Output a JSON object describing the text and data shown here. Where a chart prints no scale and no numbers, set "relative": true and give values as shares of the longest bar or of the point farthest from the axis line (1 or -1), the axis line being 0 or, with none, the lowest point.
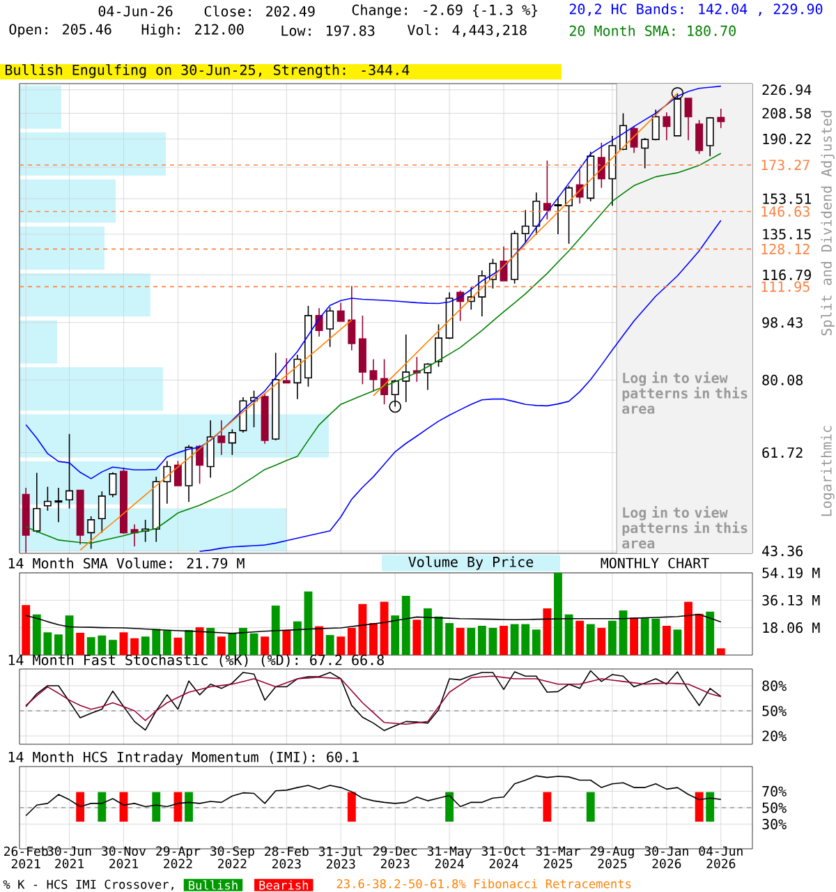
{
  "chart_data": [
    {
      "type": "candlestick",
      "title": "04-Jun-26",
      "ylabel": "Split and Dividend Adjusted",
      "annotations": [
        "Close: 202.49",
        "Change: -2.69 {-1.3 %}",
        "Open: 205.46",
        "High: 212.00",
        "Low: 197.83",
        "Vol: 4,443,218",
        "Bullish Engulfing on 30-Jun-25, Strength: -344.4",
        "Logarithmic",
        "23.6-38.2-50-61.8% Fibonacci Retracements",
        "Log in to view patterns in this area"
      ],
      "legend": "top right",
      "tick_labels": "y",
      "log": "y",
      "grid": true,
      "categories": [
        null,
        null,
        null,
        null,
        null,
        null,
        null,
        null,
        null,
        null,
        null,
        null,
        null,
        null,
        null,
        null,
        null,
        null,
        null,
        null,
        null,
        null,
        null,
        null,
        null,
        null,
        null,
        null,
        null,
        null,
        null,
        null,
        null,
        null,
        null,
        null,
        null,
        null,
        null,
        null,
        null,
        null,
        null,
        null,
        null,
        null,
        null,
        null,
        null,
        null,
        null,
        null,
        null,
        null,
        null,
        null,
        null,
        null,
        null,
        null,
        null,
        null,
        null,
        null,
        null
      ],
      "ohlc": [
        [
          53.1,
          54.4,
          43.1,
          45.9
        ],
        [
          46.6,
          57.4,
          46.3,
          50.5
        ],
        [
          51.0,
          54.6,
          50.1,
          51.8
        ],
        [
          51.7,
          54.4,
          48.1,
          51.9
        ],
        [
          52.1,
          66.0,
          50.5,
          53.8
        ],
        [
          53.9,
          53.9,
          44.4,
          45.9
        ],
        [
          46.3,
          49.1,
          43.7,
          48.5
        ],
        [
          48.7,
          53.7,
          46.3,
          52.8
        ],
        [
          53.1,
          57.5,
          52.6,
          57.2
        ],
        [
          57.7,
          58.5,
          46.1,
          46.3
        ],
        [
          46.8,
          47.7,
          44.1,
          46.3
        ],
        [
          46.6,
          48.5,
          44.8,
          46.9
        ],
        [
          46.9,
          56.6,
          44.8,
          55.6
        ],
        [
          55.6,
          59.9,
          51.4,
          58.7
        ],
        [
          59.0,
          59.9,
          54.8,
          54.8
        ],
        [
          54.8,
          63.4,
          51.7,
          62.9
        ],
        [
          63.1,
          63.4,
          55.2,
          59.0
        ],
        [
          58.7,
          69.3,
          56.4,
          65.3
        ],
        [
          65.5,
          69.3,
          61.2,
          64.0
        ],
        [
          63.9,
          67.1,
          61.2,
          66.3
        ],
        [
          66.8,
          75.3,
          66.3,
          74.3
        ],
        [
          74.3,
          77.1,
          67.6,
          75.2
        ],
        [
          75.5,
          76.4,
          63.7,
          64.5
        ],
        [
          64.8,
          88.3,
          64.5,
          80.2
        ],
        [
          79.9,
          86.6,
          79.3,
          79.3
        ],
        [
          79.3,
          87.7,
          74.8,
          86.3
        ],
        [
          80.7,
          104.5,
          78.2,
          100.9
        ],
        [
          100.9,
          103.6,
          93.6,
          95.7
        ],
        [
          96.2,
          104.0,
          90.2,
          102.6
        ],
        [
          102.6,
          105.7,
          98.9,
          98.9
        ],
        [
          99.3,
          112.2,
          89.1,
          91.3
        ],
        [
          92.8,
          100.9,
          78.9,
          82.4
        ],
        [
          82.8,
          86.3,
          76.9,
          80.2
        ],
        [
          80.5,
          86.3,
          73.4,
          76.0
        ],
        [
          76.0,
          80.2,
          72.8,
          79.8
        ],
        [
          79.8,
          94.3,
          74.0,
          82.4
        ],
        [
          82.8,
          87.0,
          79.6,
          82.2
        ],
        [
          82.2,
          85.1,
          77.3,
          84.8
        ],
        [
          85.6,
          97.8,
          84.0,
          93.1
        ],
        [
          93.1,
          109.7,
          92.8,
          107.4
        ],
        [
          109.7,
          110.4,
          99.0,
          106.2
        ],
        [
          106.2,
          111.8,
          103.1,
          107.9
        ],
        [
          107.9,
          118.7,
          100.6,
          116.4
        ],
        [
          114.9,
          123.7,
          111.2,
          121.7
        ],
        [
          122.7,
          129.3,
          114.3,
          114.3
        ],
        [
          114.9,
          136.9,
          113.2,
          135.4
        ],
        [
          135.4,
          147.4,
          131.2,
          139.1
        ],
        [
          139.1,
          157.0,
          134.8,
          152.1
        ],
        [
          150.9,
          176.0,
          142.5,
          147.4
        ],
        [
          149.7,
          154.5,
          135.2,
          150.2
        ],
        [
          149.7,
          160.9,
          130.6,
          159.6
        ],
        [
          161.3,
          170.5,
          150.9,
          154.5
        ],
        [
          153.8,
          181.7,
          152.1,
          178.8
        ],
        [
          177.9,
          187.7,
          159.6,
          164.9
        ],
        [
          164.9,
          192.4,
          149.7,
          185.7
        ],
        [
          183.3,
          208.6,
          182.7,
          199.6
        ],
        [
          197.4,
          199.0,
          180.9,
          184.8
        ],
        [
          184.1,
          190.9,
          171.2,
          189.9
        ],
        [
          189.9,
          211.3,
          189.3,
          206.0
        ],
        [
          206.0,
          209.3,
          189.3,
          199.0
        ],
        [
          192.4,
          224.1,
          192.4,
          219.5
        ],
        [
          220.1,
          220.1,
          189.3,
          206.0
        ],
        [
          200.6,
          203.6,
          180.3,
          182.5
        ],
        [
          185.7,
          205.5,
          178.8,
          205.18
        ],
        [
          205.46,
          212.0,
          197.83,
          202.49
        ]
      ],
      "series": [
        {
          "name": "20,2 HC Bands: 142.04 , 229.90",
          "type": "line",
          "color": "#0000ff",
          "values": [
            68.2,
            65.0,
            61.5,
            59.8,
            59.5,
            57.5,
            56.2,
            57.6,
            58.6,
            58.3,
            58.0,
            58.0,
            58.1,
            60.8,
            61.7,
            62.5,
            62.9,
            64.5,
            66.8,
            69.3,
            72.0,
            74.5,
            77.0,
            80.8,
            84.8,
            88.7,
            94.0,
            99.8,
            104.7,
            106.5,
            107.4,
            107.0,
            106.8,
            106.6,
            106.3,
            106.0,
            105.7,
            105.5,
            105.4,
            106.0,
            107.8,
            110.8,
            114.3,
            117.0,
            120.0,
            125.5,
            131.2,
            138.5,
            146.2,
            154.0,
            162.3,
            171.0,
            180.3,
            185.0,
            189.3,
            194.0,
            199.0,
            203.8,
            208.6,
            215.0,
            221.8,
            225.5,
            228.1,
            229.0,
            229.9
          ]
        },
        {
          "type": "line",
          "color": "#0000ff",
          "values": [
            null,
            null,
            null,
            null,
            null,
            null,
            null,
            null,
            null,
            null,
            null,
            null,
            null,
            null,
            null,
            null,
            43.3,
            43.5,
            43.8,
            44.0,
            44.1,
            44.2,
            44.3,
            44.6,
            45.0,
            45.4,
            45.8,
            46.2,
            46.6,
            49.0,
            52.2,
            54.5,
            56.6,
            59.2,
            61.9,
            63.8,
            65.5,
            67.3,
            69.1,
            70.6,
            72.0,
            73.4,
            74.6,
            74.8,
            74.8,
            74.1,
            73.4,
            73.1,
            73.0,
            73.5,
            74.2,
            76.8,
            80.2,
            84.5,
            89.2,
            94.0,
            99.0,
            103.5,
            108.2,
            112.2,
            116.4,
            121.7,
            127.3,
            134.5,
            142.04
          ]
        },
        {
          "name": "20 Month SMA: 180.70",
          "type": "line",
          "color": "#008000",
          "values": [
            47.3,
            46.5,
            45.8,
            45.1,
            44.9,
            44.7,
            44.6,
            45.0,
            45.4,
            45.8,
            46.3,
            46.6,
            47.0,
            48.3,
            49.7,
            50.4,
            51.1,
            52.0,
            52.9,
            53.8,
            55.2,
            56.6,
            58.1,
            59.0,
            60.0,
            60.9,
            64.5,
            68.2,
            70.8,
            73.4,
            74.6,
            75.8,
            77.0,
            78.3,
            79.6,
            80.9,
            82.2,
            84.0,
            85.9,
            87.9,
            90.0,
            92.8,
            95.7,
            99.0,
            102.3,
            105.6,
            109.1,
            113.2,
            117.4,
            122.3,
            127.3,
            133.1,
            139.1,
            145.5,
            152.1,
            156.5,
            160.9,
            163.5,
            166.1,
            167.3,
            168.5,
            170.7,
            173.0,
            176.8,
            180.7
          ]
        },
        {
          "type": "line",
          "color": "#ff8000",
          "values": [
            null,
            null,
            null,
            null,
            null,
            43.5,
            45.0,
            46.5,
            48.0,
            49.6,
            51.3,
            53.0,
            54.8,
            56.7,
            58.6,
            60.5,
            62.6,
            64.7,
            66.8,
            69.1,
            71.4,
            73.8,
            76.3,
            78.8,
            81.5,
            84.2,
            87.0,
            89.9,
            93.0,
            96.1,
            99.3,
            null,
            null,
            null,
            null,
            null,
            null,
            null,
            null,
            null,
            null,
            null,
            null,
            null,
            null,
            null,
            null,
            null,
            null,
            null,
            null,
            null,
            null,
            null,
            null,
            null,
            null,
            null,
            null,
            null,
            null,
            null,
            null,
            null,
            null
          ]
        },
        {
          "type": "line",
          "color": "#ff8000",
          "values": [
            null,
            null,
            null,
            null,
            null,
            null,
            null,
            null,
            null,
            null,
            null,
            null,
            null,
            null,
            null,
            null,
            null,
            null,
            null,
            null,
            null,
            null,
            null,
            null,
            null,
            null,
            null,
            null,
            null,
            null,
            null,
            null,
            75.7,
            78.7,
            81.8,
            85.0,
            88.4,
            91.9,
            95.5,
            99.3,
            103.2,
            107.3,
            111.5,
            115.9,
            120.5,
            125.3,
            130.2,
            135.4,
            140.7,
            146.3,
            152.1,
            158.1,
            164.3,
            170.8,
            177.6,
            184.6,
            191.9,
            199.4,
            207.3,
            215.5,
            224.1,
            null,
            null,
            null,
            null
          ]
        },
        {
          "type": "scatter",
          "color": "#000000",
          "marker": "circle",
          "values": [
            null,
            null,
            null,
            null,
            null,
            null,
            null,
            null,
            null,
            null,
            null,
            null,
            null,
            null,
            null,
            null,
            null,
            null,
            null,
            null,
            null,
            null,
            null,
            null,
            null,
            null,
            null,
            null,
            null,
            null,
            null,
            null,
            null,
            null,
            72.8,
            null,
            null,
            null,
            null,
            null,
            null,
            null,
            null,
            null,
            null,
            null,
            null,
            null,
            null,
            null,
            null,
            null,
            null,
            null,
            null,
            null,
            null,
            null,
            null,
            null,
            224.1,
            null,
            null,
            null,
            null
          ]
        }
      ],
      "ylim": [
        43.0,
        232
      ],
      "yticks": [
        43.36,
        61.72,
        80.08,
        98.43,
        116.79,
        135.15,
        153.51,
        {
          "value": 171.87,
          "label": null
        },
        190.22,
        208.58,
        226.94
      ],
      "ref_lines": [
        {
          "axis": "y",
          "value": 173.27,
          "label": "173.27",
          "color": "#ff8040",
          "line_style": "dashed"
        },
        {
          "axis": "y",
          "value": 146.63,
          "label": "146.63",
          "color": "#ff8040",
          "line_style": "dashed"
        },
        {
          "axis": "y",
          "value": 128.12,
          "label": "128.12",
          "color": "#ff8040",
          "line_style": "dashed"
        },
        {
          "axis": "y",
          "value": 111.95,
          "label": "111.95",
          "color": "#ff8040",
          "line_style": "dashed"
        }
      ]
    },
    {
      "type": "bar",
      "orientation": "horizontal",
      "relative": true,
      "color": "#ccf5fb",
      "categories": [
        null,
        null,
        null,
        null,
        null,
        null,
        null,
        null,
        null,
        null
      ],
      "values": [
        0.135,
        0.473,
        0.311,
        0.275,
        0.423,
        0.122,
        0.464,
        1,
        0.455,
        0.865
      ]
    },
    {
      "type": "bar",
      "title": "14 Month SMA Volume: 21.79 M",
      "annotations": [
        "MONTHLY CHART",
        "Volume By Price"
      ],
      "tick_labels": "y",
      "grid": true,
      "categories": [
        null,
        null,
        null,
        null,
        null,
        null,
        null,
        null,
        null,
        null,
        null,
        null,
        null,
        null,
        null,
        null,
        null,
        null,
        null,
        null,
        null,
        null,
        null,
        null,
        null,
        null,
        null,
        null,
        null,
        null,
        null,
        null,
        null,
        null,
        null,
        null,
        null,
        null,
        null,
        null,
        null,
        null,
        null,
        null,
        null,
        null,
        null,
        null,
        null,
        null,
        null,
        null,
        null,
        null,
        null,
        null,
        null,
        null,
        null,
        null,
        null,
        null,
        null,
        null,
        null
      ],
      "series": [
        {
          "values": [
            32.9,
            26.8,
            15.0,
            13.6,
            26.1,
            14.7,
            11.8,
            12.9,
            10.0,
            15.0,
            11.1,
            12.2,
            17.2,
            16.1,
            11.5,
            16.5,
            18.3,
            17.9,
            12.2,
            14.3,
            17.9,
            14.3,
            12.2,
            32.6,
            16.1,
            22.2,
            41.9,
            19.0,
            13.2,
            12.2,
            17.9,
            33.7,
            21.1,
            35.1,
            26.1,
            39.0,
            23.3,
            30.8,
            25.4,
            21.1,
            17.9,
            17.9,
            19.3,
            17.9,
            19.3,
            20.4,
            20.4,
            16.8,
            30.8,
            54.19,
            26.8,
            22.6,
            20.4,
            17.9,
            22.6,
            29.4,
            24.7,
            24.7,
            24.0,
            19.3,
            16.8,
            35.1,
            27.2,
            28.6,
            4.44
          ],
          "colors": [
            "#ff0000",
            "#009900",
            "#009900",
            "#009900",
            "#009900",
            "#ff0000",
            "#009900",
            "#009900",
            "#009900",
            "#ff0000",
            "#ff0000",
            "#009900",
            "#009900",
            "#009900",
            "#ff0000",
            "#009900",
            "#ff0000",
            "#009900",
            "#ff0000",
            "#009900",
            "#009900",
            "#009900",
            "#ff0000",
            "#009900",
            "#ff0000",
            "#009900",
            "#009900",
            "#ff0000",
            "#009900",
            "#ff0000",
            "#ff0000",
            "#ff0000",
            "#ff0000",
            "#ff0000",
            "#009900",
            "#009900",
            "#ff0000",
            "#009900",
            "#009900",
            "#009900",
            "#ff0000",
            "#009900",
            "#009900",
            "#009900",
            "#ff0000",
            "#009900",
            "#009900",
            "#009900",
            "#ff0000",
            "#009900",
            "#009900",
            "#ff0000",
            "#009900",
            "#ff0000",
            "#009900",
            "#009900",
            "#ff0000",
            "#009900",
            "#009900",
            "#ff0000",
            "#009900",
            "#ff0000",
            "#ff0000",
            "#009900",
            "#ff0000"
          ]
        },
        {
          "type": "line",
          "color": "#000000",
          "values": [
            26.1,
            24.2,
            22.0,
            20.0,
            18.6,
            18.4,
            18.3,
            18.1,
            18.0,
            17.9,
            17.6,
            17.2,
            16.8,
            16.4,
            16.1,
            15.8,
            15.5,
            15.1,
            14.7,
            14.3,
            14.8,
            15.3,
            15.7,
            16.1,
            16.4,
            16.7,
            17.1,
            17.4,
            17.7,
            17.9,
            18.8,
            19.7,
            20.6,
            21.5,
            22.7,
            23.9,
            25.1,
            24.8,
            24.5,
            24.3,
            24.0,
            23.9,
            23.7,
            23.6,
            23.4,
            23.3,
            23.4,
            23.6,
            23.7,
            23.9,
            24.0,
            24.0,
            24.0,
            24.0,
            24.0,
            24.0,
            24.3,
            24.6,
            24.8,
            25.1,
            25.4,
            26.1,
            26.8,
            24.3,
            21.79
          ]
        }
      ],
      "ylim": [
        0,
        54.19
      ],
      "yticks": [
        {
          "value": 18.06,
          "label": "18.06 M"
        },
        {
          "value": 36.13,
          "label": "36.13 M"
        },
        {
          "value": 54.19,
          "label": "54.19 M"
        }
      ]
    },
    {
      "type": "line",
      "title": "14 Month Fast Stochastic (%K) (%D): 67.2 66.8",
      "tick_labels": "y",
      "grid": true,
      "categories": [
        null,
        null,
        null,
        null,
        null,
        null,
        null,
        null,
        null,
        null,
        null,
        null,
        null,
        null,
        null,
        null,
        null,
        null,
        null,
        null,
        null,
        null,
        null,
        null,
        null,
        null,
        null,
        null,
        null,
        null,
        null,
        null,
        null,
        null,
        null,
        null,
        null,
        null,
        null,
        null,
        null,
        null,
        null,
        null,
        null,
        null,
        null,
        null,
        null,
        null,
        null,
        null,
        null,
        null,
        null,
        null,
        null,
        null,
        null,
        null,
        null,
        null,
        null,
        null,
        null
      ],
      "series": [
        {
          "color": "#000000",
          "values": [
            55.1,
            70.4,
            80.0,
            80.0,
            61.0,
            41.7,
            47.0,
            51.9,
            73.6,
            55.0,
            37.2,
            27.0,
            50.0,
            69.1,
            51.9,
            85.7,
            69.1,
            81.9,
            76.8,
            83.2,
            95.9,
            94.0,
            62.8,
            78.7,
            78.7,
            88.3,
            90.8,
            90.8,
            95.9,
            88.3,
            56.4,
            42.3,
            35.3,
            26.4,
            32.1,
            37.2,
            36.6,
            35.3,
            51.3,
            88.3,
            87.0,
            92.1,
            95.9,
            95.9,
            75.5,
            96.6,
            91.5,
            91.5,
            72.3,
            73.0,
            81.9,
            76.8,
            97.9,
            85.1,
            93.4,
            91.5,
            78.7,
            83.2,
            88.3,
            81.9,
            96.6,
            74.9,
            56.4,
            76.8,
            67.2
          ]
        },
        {
          "color": "#990033",
          "values": [
            56.4,
            68.0,
            78.7,
            71.0,
            62.8,
            56.5,
            51.9,
            55.0,
            59.6,
            55.0,
            50.0,
            38.5,
            50.0,
            59.6,
            66.0,
            72.3,
            75.5,
            78.7,
            80.3,
            81.9,
            85.0,
            88.3,
            83.5,
            78.7,
            83.5,
            88.3,
            89.3,
            90.2,
            89.3,
            88.3,
            74.0,
            59.6,
            47.8,
            36.0,
            35.0,
            34.0,
            35.6,
            37.2,
            54.8,
            72.3,
            81.0,
            89.6,
            90.6,
            91.5,
            89.9,
            88.3,
            88.3,
            88.3,
            85.1,
            81.9,
            81.9,
            81.9,
            85.1,
            88.3,
            86.7,
            85.1,
            83.5,
            81.9,
            82.6,
            83.2,
            82.6,
            81.9,
            76.2,
            70.4,
            66.8
          ]
        }
      ],
      "ylim": [
        10,
        100
      ],
      "yticks": [
        {
          "value": 20,
          "label": "20%"
        },
        {
          "value": 50,
          "label": "50%"
        },
        {
          "value": 80,
          "label": "80%"
        }
      ],
      "ref_lines": [
        {
          "axis": "y",
          "value": 50,
          "color": "#999999",
          "line_style": "dashed"
        }
      ]
    },
    {
      "type": "line",
      "title": "14 Month HCS Intraday Momentum (IMI): 60.1",
      "grid": true,
      "legend": "bottom",
      "legend_title": "% K - HCS IMI Crossover,",
      "categories": [
        "26-Feb 2021",
        null,
        null,
        null,
        "30-Jun 2021",
        null,
        null,
        null,
        null,
        "30-Nov 2021",
        null,
        null,
        null,
        null,
        "29-Apr 2022",
        null,
        null,
        null,
        null,
        "30-Sep 2022",
        null,
        null,
        null,
        null,
        "28-Feb 2023",
        null,
        null,
        null,
        null,
        "31-Jul 2023",
        null,
        null,
        null,
        null,
        "29-Dec 2023",
        null,
        null,
        null,
        null,
        "31-May 2024",
        null,
        null,
        null,
        null,
        "31-Oct 2024",
        null,
        null,
        null,
        null,
        "31-Mar 2025",
        null,
        null,
        null,
        null,
        "29-Aug 2025",
        null,
        null,
        null,
        null,
        "30-Jan 2026",
        null,
        null,
        null,
        null,
        "04-Jun 2026"
      ],
      "series": [
        {
          "name": "Bullish",
          "type": "bar",
          "color": "#009900",
          "base": [
            null,
            null,
            null,
            null,
            null,
            null,
            null,
            33,
            null,
            null,
            null,
            null,
            33,
            null,
            null,
            33,
            null,
            null,
            null,
            null,
            null,
            null,
            null,
            null,
            null,
            null,
            null,
            null,
            null,
            null,
            null,
            null,
            null,
            null,
            null,
            null,
            null,
            null,
            null,
            33,
            null,
            null,
            null,
            null,
            null,
            null,
            null,
            null,
            null,
            null,
            null,
            null,
            33,
            null,
            null,
            null,
            null,
            null,
            null,
            null,
            null,
            null,
            null,
            33,
            null
          ],
          "values": [
            null,
            null,
            null,
            null,
            null,
            null,
            null,
            36,
            null,
            null,
            null,
            null,
            36,
            null,
            null,
            36,
            null,
            null,
            null,
            null,
            null,
            null,
            null,
            null,
            null,
            null,
            null,
            null,
            null,
            null,
            null,
            null,
            null,
            null,
            null,
            null,
            null,
            null,
            null,
            36,
            null,
            null,
            null,
            null,
            null,
            null,
            null,
            null,
            null,
            null,
            null,
            null,
            36,
            null,
            null,
            null,
            null,
            null,
            null,
            null,
            null,
            null,
            null,
            36,
            null
          ]
        },
        {
          "name": "Bearish",
          "type": "bar",
          "color": "#ff0000",
          "base": [
            null,
            null,
            null,
            null,
            null,
            33,
            null,
            null,
            null,
            33,
            null,
            null,
            null,
            null,
            33,
            null,
            null,
            null,
            null,
            null,
            null,
            null,
            null,
            null,
            null,
            null,
            null,
            null,
            null,
            null,
            33,
            null,
            null,
            null,
            null,
            null,
            null,
            null,
            null,
            null,
            null,
            null,
            null,
            null,
            null,
            null,
            null,
            null,
            33,
            null,
            null,
            null,
            null,
            null,
            null,
            null,
            null,
            null,
            null,
            null,
            null,
            null,
            33,
            null,
            null
          ],
          "values": [
            null,
            null,
            null,
            null,
            null,
            36,
            null,
            null,
            null,
            36,
            null,
            null,
            null,
            null,
            36,
            null,
            null,
            null,
            null,
            null,
            null,
            null,
            null,
            null,
            null,
            null,
            null,
            null,
            null,
            null,
            36,
            null,
            null,
            null,
            null,
            null,
            null,
            null,
            null,
            null,
            null,
            null,
            null,
            null,
            null,
            null,
            null,
            null,
            36,
            null,
            null,
            null,
            null,
            null,
            null,
            null,
            null,
            null,
            null,
            null,
            null,
            null,
            36,
            null,
            null
          ]
        },
        {
          "type": "line",
          "color": "#000000",
          "values": [
            40.3,
            53.2,
            55.2,
            66.1,
            59.7,
            51.3,
            55.2,
            55.2,
            61.0,
            53.2,
            55.2,
            51.3,
            53.2,
            51.3,
            55.2,
            56.5,
            55.2,
            57.7,
            56.5,
            64.2,
            68.1,
            67.4,
            55.2,
            70.6,
            71.3,
            74.5,
            77.1,
            72.6,
            77.1,
            74.5,
            69.4,
            61.6,
            58.4,
            56.5,
            55.2,
            56.5,
            62.9,
            58.4,
            61.6,
            64.8,
            51.3,
            56.5,
            56.5,
            61.6,
            62.9,
            79.0,
            83.5,
            88.7,
            86.8,
            88.1,
            87.4,
            83.5,
            83.5,
            74.5,
            79.0,
            80.3,
            74.5,
            74.5,
            79.0,
            72.6,
            74.5,
            66.1,
            59.7,
            61.6,
            60.1
          ]
        }
      ],
      "ylim": [
        0,
        100
      ],
      "yticks": [
        {
          "value": 30,
          "label": "30%"
        },
        {
          "value": 50,
          "label": "50%"
        },
        {
          "value": 70,
          "label": "70%"
        }
      ],
      "ref_lines": [
        {
          "axis": "y",
          "value": 50,
          "color": "#999999",
          "line_style": "dashed"
        }
      ]
    }
  ]
}
